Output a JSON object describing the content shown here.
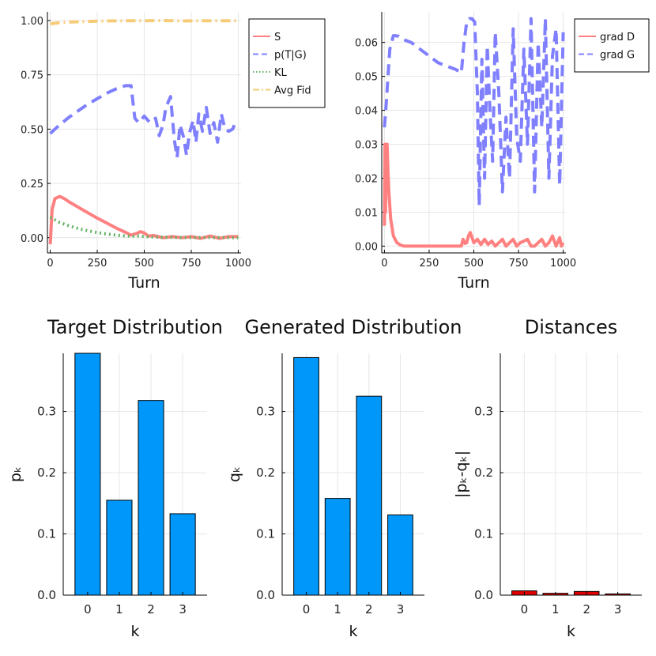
{
  "chart_data": [
    {
      "type": "line",
      "id": "p1",
      "xlabel": "Turn",
      "xlim": [
        -15,
        1015
      ],
      "ylim": [
        -0.07,
        1.04
      ],
      "xticks": [
        0,
        250,
        500,
        750,
        1000
      ],
      "yticks": [
        0.0,
        0.25,
        0.5,
        0.75,
        1.0
      ],
      "ytick_labels": [
        "0.00",
        "0.25",
        "0.50",
        "0.75",
        "1.00"
      ],
      "legend_position": "top-right",
      "series": [
        {
          "name": "S",
          "color": "#ff8080",
          "style": "solid",
          "x": [
            0,
            10,
            25,
            50,
            75,
            100,
            150,
            200,
            250,
            300,
            350,
            400,
            430,
            460,
            480,
            500,
            520,
            550,
            600,
            650,
            700,
            750,
            800,
            850,
            900,
            950,
            1000
          ],
          "y": [
            -0.03,
            0.13,
            0.18,
            0.19,
            0.18,
            0.165,
            0.14,
            0.115,
            0.09,
            0.068,
            0.045,
            0.025,
            0.012,
            0.02,
            0.028,
            0.022,
            0.008,
            0.01,
            0.0,
            0.005,
            0.0,
            0.005,
            -0.003,
            0.008,
            -0.003,
            0.005,
            0.005
          ]
        },
        {
          "name": "p(T|G)",
          "color": "#8080ff",
          "style": "dash",
          "x": [
            0,
            25,
            50,
            100,
            150,
            200,
            250,
            300,
            350,
            400,
            430,
            450,
            470,
            500,
            530,
            560,
            580,
            600,
            615,
            640,
            660,
            675,
            690,
            710,
            725,
            740,
            760,
            775,
            790,
            810,
            830,
            850,
            870,
            890,
            910,
            930,
            950,
            970,
            985,
            1000
          ],
          "y": [
            0.48,
            0.5,
            0.52,
            0.555,
            0.585,
            0.615,
            0.64,
            0.665,
            0.685,
            0.7,
            0.7,
            0.55,
            0.53,
            0.56,
            0.53,
            0.55,
            0.47,
            0.52,
            0.6,
            0.65,
            0.45,
            0.37,
            0.52,
            0.46,
            0.38,
            0.48,
            0.54,
            0.44,
            0.57,
            0.49,
            0.6,
            0.48,
            0.53,
            0.44,
            0.57,
            0.5,
            0.49,
            0.5,
            0.53,
            0.52
          ]
        },
        {
          "name": "KL",
          "color": "#63b363",
          "style": "dot",
          "x": [
            0,
            25,
            50,
            100,
            150,
            200,
            250,
            300,
            350,
            400,
            430,
            460,
            500,
            550,
            600,
            700,
            800,
            900,
            1000
          ],
          "y": [
            0.095,
            0.082,
            0.07,
            0.055,
            0.042,
            0.032,
            0.024,
            0.017,
            0.012,
            0.008,
            0.007,
            0.008,
            0.006,
            0.003,
            0.002,
            0.001,
            0.001,
            0.001,
            0.0
          ]
        },
        {
          "name": "Avg Fid",
          "color": "#f6cc78",
          "style": "dashdot",
          "x": [
            0,
            50,
            100,
            200,
            300,
            400,
            430,
            500,
            600,
            700,
            800,
            900,
            1000
          ],
          "y": [
            0.985,
            0.99,
            0.993,
            0.996,
            0.998,
            0.999,
            0.999,
            0.999,
            1.0,
            0.998,
            0.999,
            0.999,
            0.999
          ]
        }
      ]
    },
    {
      "type": "line",
      "id": "p2",
      "xlabel": "Turn",
      "xlim": [
        -15,
        1015
      ],
      "ylim": [
        -0.002,
        0.069
      ],
      "xticks": [
        0,
        250,
        500,
        750,
        1000
      ],
      "yticks": [
        0.0,
        0.01,
        0.02,
        0.03,
        0.04,
        0.05,
        0.06
      ],
      "ytick_labels": [
        "0.00",
        "0.01",
        "0.02",
        "0.03",
        "0.04",
        "0.05",
        "0.06"
      ],
      "legend_position": "top-right",
      "series": [
        {
          "name": "grad D",
          "color": "#ff8080",
          "style": "solid",
          "x": [
            0,
            3,
            6,
            10,
            15,
            20,
            25,
            35,
            50,
            70,
            90,
            110,
            150,
            300,
            430,
            440,
            450,
            460,
            470,
            480,
            500,
            520,
            540,
            560,
            580,
            600,
            620,
            640,
            660,
            680,
            700,
            720,
            740,
            760,
            780,
            800,
            820,
            840,
            860,
            880,
            900,
            920,
            940,
            960,
            980,
            990,
            1000
          ],
          "y": [
            0.006,
            0.03,
            0.01,
            0.029,
            0.03,
            0.022,
            0.016,
            0.008,
            0.003,
            0.001,
            0.0003,
            0.0,
            0.0,
            0.0,
            0.0,
            0.002,
            0.0008,
            0.001,
            0.003,
            0.004,
            0.001,
            0.002,
            0.0005,
            0.002,
            0.0005,
            0.0015,
            0.0,
            0.001,
            0.002,
            0.0,
            0.001,
            0.002,
            0.0,
            0.001,
            0.0015,
            0.002,
            0.0,
            0.0,
            0.001,
            0.002,
            0.0,
            0.001,
            0.003,
            0.0,
            0.0025,
            0.0,
            0.001
          ]
        },
        {
          "name": "grad G",
          "color": "#8080ff",
          "style": "dash",
          "x": [
            0,
            10,
            20,
            30,
            40,
            50,
            60,
            80,
            100,
            150,
            200,
            250,
            300,
            350,
            400,
            430,
            445,
            460,
            475,
            490,
            505,
            520,
            530,
            545,
            560,
            575,
            590,
            605,
            620,
            640,
            660,
            680,
            700,
            720,
            740,
            760,
            780,
            800,
            820,
            840,
            860,
            880,
            900,
            920,
            940,
            960,
            980,
            1000
          ],
          "y": [
            0.035,
            0.042,
            0.05,
            0.058,
            0.06,
            0.062,
            0.062,
            0.0618,
            0.061,
            0.06,
            0.058,
            0.056,
            0.054,
            0.053,
            0.052,
            0.051,
            0.06,
            0.066,
            0.067,
            0.067,
            0.066,
            0.045,
            0.012,
            0.055,
            0.02,
            0.059,
            0.04,
            0.025,
            0.063,
            0.045,
            0.016,
            0.038,
            0.02,
            0.064,
            0.032,
            0.025,
            0.058,
            0.03,
            0.067,
            0.016,
            0.06,
            0.035,
            0.067,
            0.02,
            0.056,
            0.064,
            0.018,
            0.063
          ]
        }
      ]
    },
    {
      "type": "bar",
      "id": "p3",
      "title": "Target Distribution",
      "xlabel": "k",
      "ylabel": "pₖ",
      "categories": [
        "0",
        "1",
        "2",
        "3"
      ],
      "values": [
        0.395,
        0.155,
        0.318,
        0.133
      ],
      "ylim": [
        0,
        0.395
      ],
      "yticks": [
        0.0,
        0.1,
        0.2,
        0.3
      ],
      "ytick_labels": [
        "0.0",
        "0.1",
        "0.2",
        "0.3"
      ],
      "color": "#0097fa"
    },
    {
      "type": "bar",
      "id": "p4",
      "title": "Generated Distribution",
      "xlabel": "k",
      "ylabel": "qₖ",
      "categories": [
        "0",
        "1",
        "2",
        "3"
      ],
      "values": [
        0.388,
        0.158,
        0.325,
        0.131
      ],
      "ylim": [
        0,
        0.395
      ],
      "yticks": [
        0.0,
        0.1,
        0.2,
        0.3
      ],
      "ytick_labels": [
        "0.0",
        "0.1",
        "0.2",
        "0.3"
      ],
      "color": "#0097fa"
    },
    {
      "type": "bar",
      "id": "p5",
      "title": "Distances",
      "xlabel": "k",
      "ylabel": "|pₖ-qₖ|",
      "categories": [
        "0",
        "1",
        "2",
        "3"
      ],
      "values": [
        0.007,
        0.003,
        0.006,
        0.002
      ],
      "ylim": [
        0,
        0.395
      ],
      "yticks": [
        0.0,
        0.1,
        0.2,
        0.3
      ],
      "ytick_labels": [
        "0.0",
        "0.1",
        "0.2",
        "0.3"
      ],
      "color": "#e00000"
    }
  ]
}
